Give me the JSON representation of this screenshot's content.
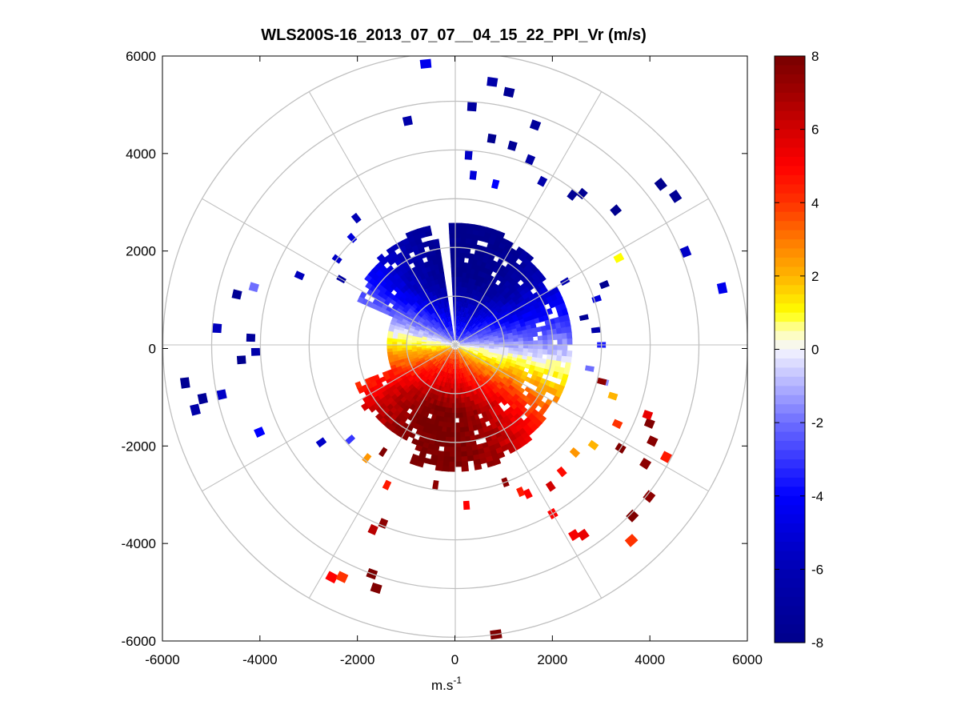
{
  "chart_data": {
    "type": "heatmap",
    "title": "WLS200S-16_2013_07_07__04_15_22_PPI_Vr (m/s)",
    "xlabel": "m.s",
    "xlabel_superscript": "-1",
    "ylabel": "",
    "xlim": [
      -6000,
      6000
    ],
    "ylim": [
      -6000,
      6000
    ],
    "xticks": [
      -6000,
      -4000,
      -2000,
      0,
      2000,
      4000,
      6000
    ],
    "yticks": [
      6000,
      4000,
      2000,
      0,
      -2000,
      -4000,
      -6000
    ],
    "xtick_labels": [
      "-6000",
      "-4000",
      "-2000",
      "0",
      "2000",
      "4000",
      "6000"
    ],
    "ytick_labels": [
      "6000",
      "4000",
      "2000",
      "0",
      "-2000",
      "-4000",
      "-6000"
    ],
    "polar_grid": {
      "ring_radii_m": [
        1000,
        2000,
        3000,
        4000,
        5000,
        6000
      ],
      "spoke_angles_deg": [
        0,
        30,
        60,
        90,
        120,
        150,
        180,
        210,
        240,
        270,
        300,
        330
      ],
      "color": "#c0c0c0"
    },
    "colorbar": {
      "min": -8,
      "max": 8,
      "ticks": [
        8,
        6,
        4,
        2,
        0,
        -2,
        -4,
        -6,
        -8
      ],
      "tick_labels": [
        "8",
        "6",
        "4",
        "2",
        "0",
        "-2",
        "-4",
        "-6",
        "-8"
      ],
      "stops": [
        {
          "v": -8,
          "color": "#00008b"
        },
        {
          "v": -6,
          "color": "#0000b4"
        },
        {
          "v": -4,
          "color": "#0000ff"
        },
        {
          "v": -2,
          "color": "#6e6eff"
        },
        {
          "v": 0,
          "color": "#f5f5ff"
        },
        {
          "v": 0.5,
          "color": "#ffffb0"
        },
        {
          "v": 1,
          "color": "#ffff00"
        },
        {
          "v": 2,
          "color": "#ffb400"
        },
        {
          "v": 3,
          "color": "#ff7800"
        },
        {
          "v": 4,
          "color": "#ff3200"
        },
        {
          "v": 5,
          "color": "#ff0000"
        },
        {
          "v": 6,
          "color": "#d20000"
        },
        {
          "v": 7,
          "color": "#a00000"
        },
        {
          "v": 8,
          "color": "#780000"
        }
      ]
    },
    "velocity_field": {
      "description": "Radial velocity, negative (towards lidar) in the north sector, positive (away) in the south sector",
      "sector_from_azimuth_deg": 290,
      "sector_to_azimuth_deg": 110,
      "negative_azimuth_center_deg": 10,
      "max_abs_velocity_ms": 8,
      "dense_range_north_m": [
        0,
        2500
      ],
      "dense_range_south_m": [
        0,
        2600
      ],
      "gap_azimuth_deg": [
        350,
        358
      ]
    },
    "scattered_gates": [
      {
        "az": 354,
        "r": 5800,
        "v": -4.5
      },
      {
        "az": 8,
        "r": 5450,
        "v": -6.5
      },
      {
        "az": 12,
        "r": 5300,
        "v": -7.5
      },
      {
        "az": 4,
        "r": 4900,
        "v": -7.0
      },
      {
        "az": 20,
        "r": 4800,
        "v": -7.2
      },
      {
        "az": 348,
        "r": 4700,
        "v": -6.5
      },
      {
        "az": 10,
        "r": 4300,
        "v": -7.8
      },
      {
        "az": 16,
        "r": 4250,
        "v": -7.5
      },
      {
        "az": 22,
        "r": 4100,
        "v": -6.8
      },
      {
        "az": 4,
        "r": 3900,
        "v": -5.5
      },
      {
        "az": 28,
        "r": 3800,
        "v": -6.5
      },
      {
        "az": 6,
        "r": 3500,
        "v": -5.0
      },
      {
        "az": 14,
        "r": 3400,
        "v": -4.0
      },
      {
        "az": 38,
        "r": 3900,
        "v": -7.5
      },
      {
        "az": 40,
        "r": 4050,
        "v": -7.6
      },
      {
        "az": 50,
        "r": 4300,
        "v": -7.8
      },
      {
        "az": 52,
        "r": 5350,
        "v": -7.9
      },
      {
        "az": 56,
        "r": 5450,
        "v": -7.5
      },
      {
        "az": 68,
        "r": 5100,
        "v": -5.5
      },
      {
        "az": 78,
        "r": 5600,
        "v": -4.5
      },
      {
        "az": 62,
        "r": 3800,
        "v": 1.0
      },
      {
        "az": 68,
        "r": 3300,
        "v": -7.8
      },
      {
        "az": 72,
        "r": 3050,
        "v": -5.0
      },
      {
        "az": 78,
        "r": 2700,
        "v": -7.5
      },
      {
        "az": 60,
        "r": 2600,
        "v": -6.2
      },
      {
        "az": 84,
        "r": 2900,
        "v": -6.5
      },
      {
        "az": 90,
        "r": 3000,
        "v": -3.5
      },
      {
        "az": 100,
        "r": 2800,
        "v": -2.0
      },
      {
        "az": 104,
        "r": 3150,
        "v": -1.5
      },
      {
        "az": 108,
        "r": 3400,
        "v": 2.0
      },
      {
        "az": 322,
        "r": 3300,
        "v": -6.0
      },
      {
        "az": 316,
        "r": 3050,
        "v": -5.0
      },
      {
        "az": 306,
        "r": 3000,
        "v": -5.5
      },
      {
        "az": 300,
        "r": 2700,
        "v": -7.0
      },
      {
        "az": 294,
        "r": 3500,
        "v": -5.8
      },
      {
        "az": 286,
        "r": 4300,
        "v": -2.0
      },
      {
        "az": 283,
        "r": 4600,
        "v": -7.5
      },
      {
        "az": 274,
        "r": 4900,
        "v": -5.8
      },
      {
        "az": 272,
        "r": 4200,
        "v": -7.2
      },
      {
        "az": 268,
        "r": 4100,
        "v": -6.5
      },
      {
        "az": 266,
        "r": 4400,
        "v": -7.8
      },
      {
        "az": 262,
        "r": 5600,
        "v": -7.6
      },
      {
        "az": 258,
        "r": 5300,
        "v": -7.4
      },
      {
        "az": 256,
        "r": 5500,
        "v": -6.6
      },
      {
        "az": 258,
        "r": 4900,
        "v": -5.5
      },
      {
        "az": 246,
        "r": 4400,
        "v": -4.0
      },
      {
        "az": 234,
        "r": 3400,
        "v": -5.5
      },
      {
        "az": 228,
        "r": 2900,
        "v": -3.0
      },
      {
        "az": 218,
        "r": 2950,
        "v": 2.5
      },
      {
        "az": 214,
        "r": 2650,
        "v": 7.8
      },
      {
        "az": 206,
        "r": 3200,
        "v": 4.5
      },
      {
        "az": 204,
        "r": 4150,
        "v": 6.5
      },
      {
        "az": 202,
        "r": 3950,
        "v": 7.5
      },
      {
        "az": 208,
        "r": 5400,
        "v": 5.0
      },
      {
        "az": 206,
        "r": 5300,
        "v": 4.0
      },
      {
        "az": 200,
        "r": 5000,
        "v": 7.9
      },
      {
        "az": 198,
        "r": 5250,
        "v": 7.8
      },
      {
        "az": 188,
        "r": 2900,
        "v": 7.5
      },
      {
        "az": 176,
        "r": 3300,
        "v": 5.0
      },
      {
        "az": 172,
        "r": 6000,
        "v": 7.8
      },
      {
        "az": 160,
        "r": 3000,
        "v": 7.5
      },
      {
        "az": 156,
        "r": 3300,
        "v": 4.5
      },
      {
        "az": 154,
        "r": 3400,
        "v": 5.0
      },
      {
        "az": 150,
        "r": 4000,
        "v": 5.0
      },
      {
        "az": 148,
        "r": 4600,
        "v": 5.2
      },
      {
        "az": 146,
        "r": 4700,
        "v": 5.5
      },
      {
        "az": 138,
        "r": 5400,
        "v": 4.0
      },
      {
        "az": 146,
        "r": 3500,
        "v": 6.0
      },
      {
        "az": 140,
        "r": 3400,
        "v": 4.8
      },
      {
        "az": 132,
        "r": 3300,
        "v": 2.5
      },
      {
        "az": 126,
        "r": 3500,
        "v": 2.0
      },
      {
        "az": 122,
        "r": 4000,
        "v": 7.8
      },
      {
        "az": 122,
        "r": 4600,
        "v": 7.5
      },
      {
        "az": 128,
        "r": 5050,
        "v": 7.5
      },
      {
        "az": 134,
        "r": 5050,
        "v": 7.8
      },
      {
        "az": 118,
        "r": 4900,
        "v": 4.5
      },
      {
        "az": 116,
        "r": 4500,
        "v": 7.6
      },
      {
        "az": 112,
        "r": 4300,
        "v": 7.8
      },
      {
        "az": 110,
        "r": 4200,
        "v": 5.5
      },
      {
        "az": 116,
        "r": 3700,
        "v": 4.0
      },
      {
        "az": 104,
        "r": 3100,
        "v": 7.5
      }
    ]
  }
}
